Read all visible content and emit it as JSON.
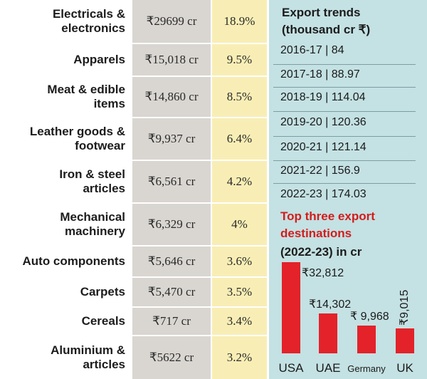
{
  "table": {
    "rows": [
      {
        "category": "Electricals &\nelectronics",
        "value": "₹29699 cr",
        "share": "18.9%"
      },
      {
        "category": "Apparels",
        "value": "₹15,018 cr",
        "share": "9.5%"
      },
      {
        "category": "Meat & edible\nitems",
        "value": "₹14,860 cr",
        "share": "8.5%"
      },
      {
        "category": "Leather goods &\nfootwear",
        "value": "₹9,937 cr",
        "share": "6.4%"
      },
      {
        "category": "Iron & steel\narticles",
        "value": "₹6,561 cr",
        "share": "4.2%"
      },
      {
        "category": "Mechanical\nmachinery",
        "value": "₹6,329 cr",
        "share": "4%"
      },
      {
        "category": "Auto components",
        "value": "₹5,646 cr",
        "share": "3.6%"
      },
      {
        "category": "Carpets",
        "value": "₹5,470 cr",
        "share": "3.5%"
      },
      {
        "category": "Cereals",
        "value": "₹717 cr",
        "share": "3.4%"
      },
      {
        "category": "Aluminium &\narticles",
        "value": "₹5622 cr",
        "share": "3.2%"
      }
    ]
  },
  "trends": {
    "title": "Export trends\n(thousand cr ₹)",
    "items": [
      "2016-17 | 84",
      "2017-18 | 88.97",
      "2018-19 | 114.04",
      "2019-20 | 120.36",
      "2020-21 | 121.14",
      "2021-22 | 156.9",
      "2022-23 | 174.03"
    ]
  },
  "destinations": {
    "title": "Top three export\ndestinations",
    "subtitle": "(2022-23) in cr"
  },
  "colors": {
    "bar": "#e3222a",
    "panel": "#c4e1e3",
    "value_col": "#d9d6d1",
    "share_col": "#f8eeb5"
  },
  "chart_data": {
    "type": "bar",
    "title": "Top three export destinations (2022-23) in cr",
    "categories": [
      "USA",
      "UAE",
      "Germany",
      "UK"
    ],
    "values": [
      32812,
      14302,
      9968,
      9015
    ],
    "labels": [
      "₹32,812",
      "₹14,302",
      "₹ 9,968",
      "₹9,015"
    ],
    "ylim": [
      0,
      32812
    ]
  }
}
